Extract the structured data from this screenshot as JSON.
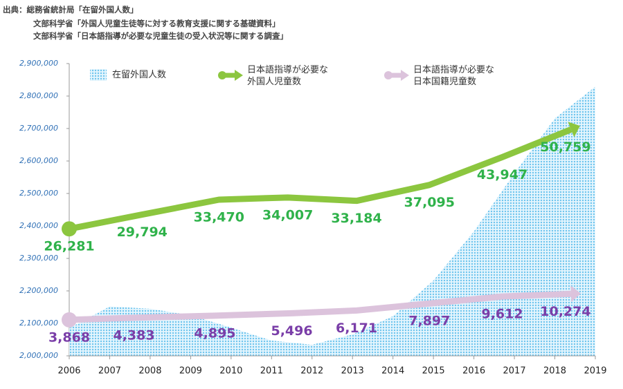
{
  "chart_data": {
    "type": "area-arrows",
    "notes": [
      "出典：総務省統計局「在留外国人数」",
      "文部科学省「外国人児童生徒等に対する教育支援に関する基礎資料」",
      "文部科学省「日本語指導が必要な児童生徒の受入状況等に関する調査」"
    ],
    "xlim": [
      2006,
      2019
    ],
    "xticks": [
      2006,
      2007,
      2008,
      2009,
      2010,
      2011,
      2012,
      2013,
      2014,
      2015,
      2016,
      2017,
      2018,
      2019
    ],
    "ylim": [
      2000000,
      2900000
    ],
    "yticks": [
      {
        "value": 2000000,
        "label": "2,000,000"
      },
      {
        "value": 2100000,
        "label": "2,100,000"
      },
      {
        "value": 2200000,
        "label": "2,200,000"
      },
      {
        "value": 2300000,
        "label": "2,300,000"
      },
      {
        "value": 2400000,
        "label": "2,400,000"
      },
      {
        "value": 2500000,
        "label": "2,500,000"
      },
      {
        "value": 2600000,
        "label": "2,600,000"
      },
      {
        "value": 2700000,
        "label": "2,700,000"
      },
      {
        "value": 2800000,
        "label": "2,800,000"
      },
      {
        "value": 2900000,
        "label": "2,900,000"
      }
    ],
    "y2lim": [
      -5000,
      67000
    ],
    "series": [
      {
        "name": "在留外国人数",
        "kind": "area",
        "color": "#6cc4ee",
        "x": [
          2006,
          2007,
          2008,
          2009,
          2010,
          2011,
          2012,
          2013,
          2014,
          2015,
          2016,
          2017,
          2018,
          2019
        ],
        "values": [
          2085000,
          2152000,
          2145000,
          2125000,
          2087000,
          2047000,
          2034000,
          2066000,
          2122000,
          2232000,
          2383000,
          2562000,
          2731000,
          2829000
        ]
      },
      {
        "name": "日本語指導が必要な外国人児童数",
        "kind": "arrow",
        "axis": "y2",
        "color": "#8cc63f",
        "label_color": "#2fb24a",
        "x": [
          2006,
          2007.8,
          2009.7,
          2011.4,
          2013.1,
          2014.9,
          2016.7,
          2018.4
        ],
        "values": [
          26281,
          29794,
          33470,
          34007,
          33184,
          37095,
          43947,
          50759
        ],
        "value_labels": [
          "26,281",
          "29,794",
          "33,470",
          "34,007",
          "33,184",
          "37,095",
          "43,947",
          "50,759"
        ]
      },
      {
        "name": "日本語指導が必要な日本国籍児童数",
        "kind": "arrow",
        "axis": "y2",
        "color": "#dcc3dc",
        "label_color": "#7a3ea8",
        "x": [
          2006,
          2007.6,
          2009.6,
          2011.5,
          2013.1,
          2014.9,
          2016.7,
          2018.4
        ],
        "values": [
          3868,
          4383,
          4895,
          5496,
          6171,
          7897,
          9612,
          10274
        ],
        "value_labels": [
          "3,868",
          "4,383",
          "4,895",
          "5,496",
          "6,171",
          "7,897",
          "9,612",
          "10,274"
        ]
      }
    ]
  }
}
